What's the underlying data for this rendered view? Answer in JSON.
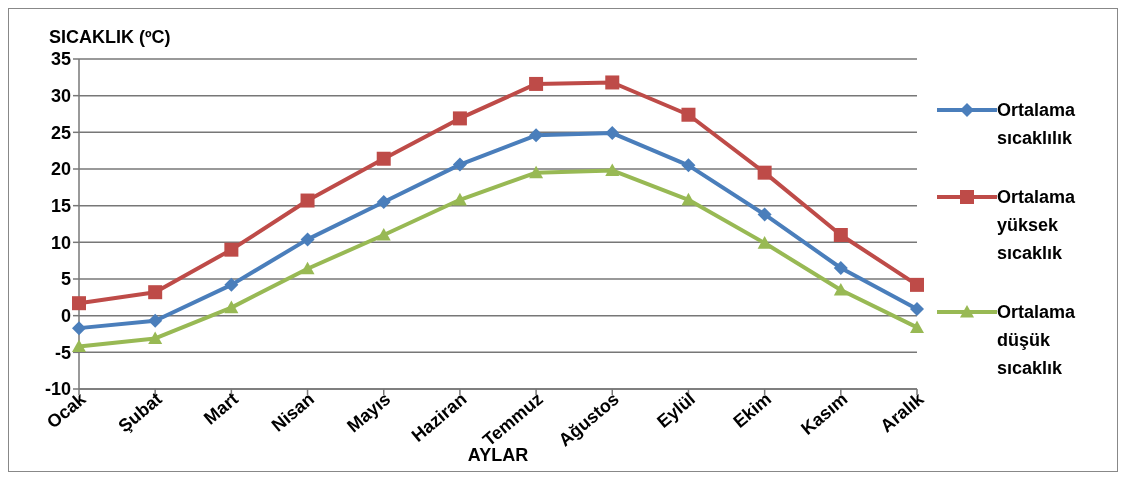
{
  "chart_data": {
    "type": "line",
    "ylabel": "SICAKLIK (ºC)",
    "xlabel": "AYLAR",
    "categories": [
      "Ocak",
      "Şubat",
      "Mart",
      "Nisan",
      "Mayıs",
      "Haziran",
      "Temmuz",
      "Ağustos",
      "Eylül",
      "Ekim",
      "Kasım",
      "Aralık"
    ],
    "series": [
      {
        "name": "Ortalama sıcaklılık",
        "color": "#4a7ebb",
        "marker": "diamond",
        "values": [
          -1.7,
          -0.7,
          4.2,
          10.4,
          15.5,
          20.6,
          24.6,
          24.9,
          20.5,
          13.8,
          6.5,
          0.9
        ]
      },
      {
        "name": "Ortalama yüksek sıcaklık",
        "color": "#be4b48",
        "marker": "square",
        "values": [
          1.7,
          3.2,
          9.0,
          15.7,
          21.4,
          26.9,
          31.6,
          31.8,
          27.4,
          19.5,
          11.0,
          4.2
        ]
      },
      {
        "name": "Ortalama düşük sıcaklık",
        "color": "#98b954",
        "marker": "triangle",
        "values": [
          -4.2,
          -3.1,
          1.1,
          6.4,
          11.0,
          15.8,
          19.5,
          19.8,
          15.8,
          9.9,
          3.5,
          -1.6
        ]
      }
    ],
    "ylim": [
      -10,
      35
    ],
    "yticks": [
      -10,
      -5,
      0,
      5,
      10,
      15,
      20,
      25,
      30,
      35
    ],
    "grid": "y",
    "legend": "right"
  }
}
